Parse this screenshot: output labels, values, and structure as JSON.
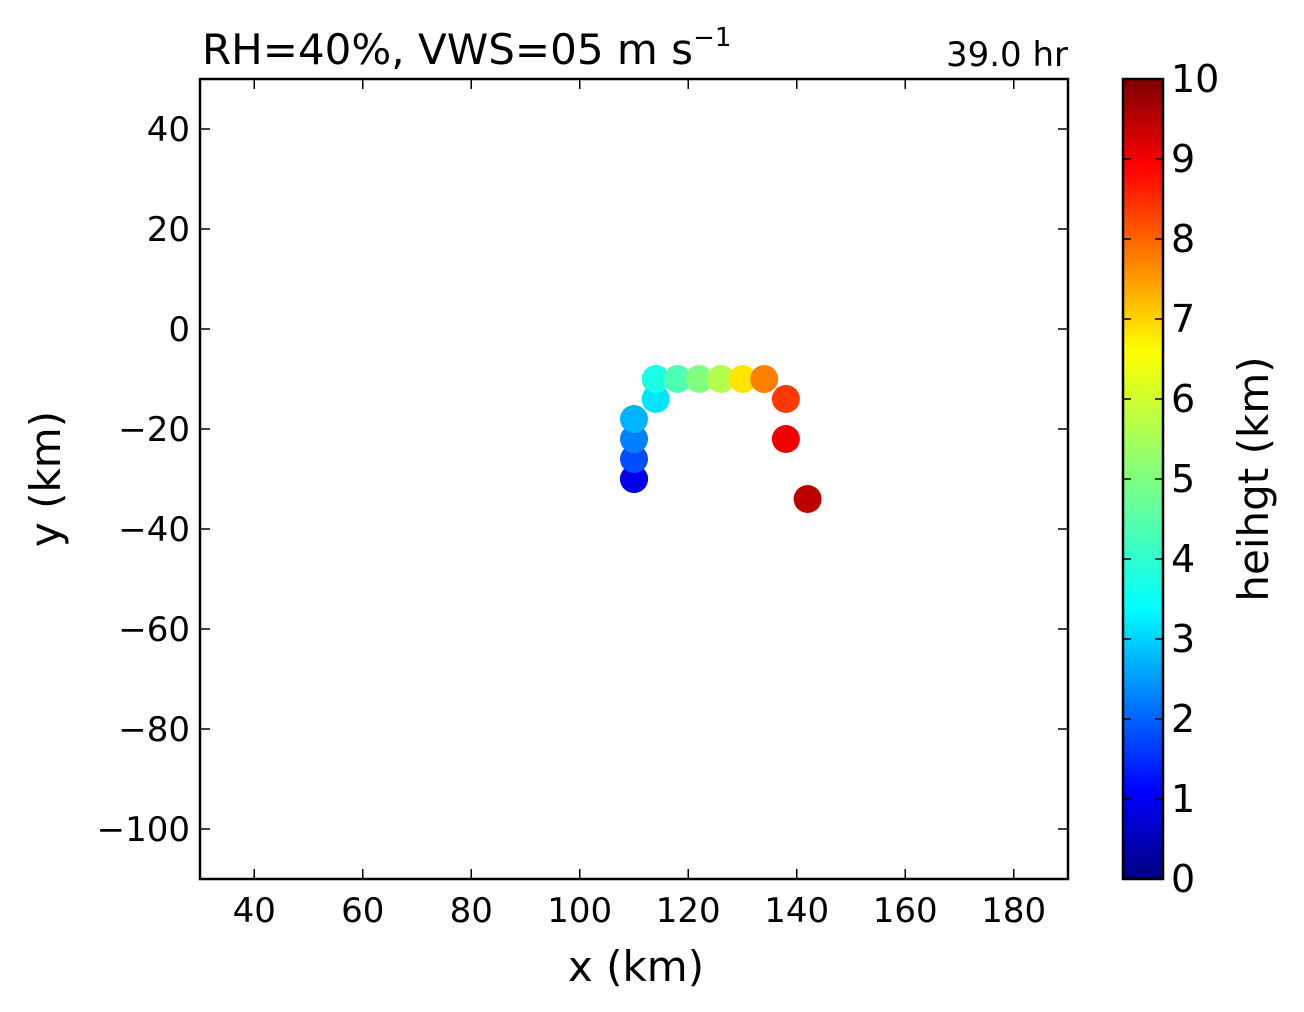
{
  "chart_data": {
    "type": "scatter",
    "title_main": "RH=40%, VWS=05 m s",
    "title_sup": "−1",
    "time_label": "39.0 hr",
    "time_label_color": "#0000ff",
    "xlabel": "x (km)",
    "ylabel": "y (km)",
    "xlim": [
      30,
      190
    ],
    "ylim": [
      -110,
      50
    ],
    "xticks": [
      40,
      60,
      80,
      100,
      120,
      140,
      160,
      180
    ],
    "yticks": [
      -100,
      -80,
      -60,
      -40,
      -20,
      0,
      20,
      40
    ],
    "colorbar": {
      "label": "heihgt (km)",
      "range": [
        0,
        10
      ],
      "ticks": [
        0,
        1,
        2,
        3,
        4,
        5,
        6,
        7,
        8,
        9,
        10
      ],
      "colormap": "jet"
    },
    "grid": false,
    "points": [
      {
        "x": 110,
        "y": -30,
        "height": 0.5
      },
      {
        "x": 110,
        "y": -30,
        "height": 1.0
      },
      {
        "x": 110,
        "y": -26,
        "height": 2.0
      },
      {
        "x": 110,
        "y": -22,
        "height": 2.5
      },
      {
        "x": 110,
        "y": -18,
        "height": 3.0
      },
      {
        "x": 114,
        "y": -14,
        "height": 3.5
      },
      {
        "x": 114,
        "y": -10,
        "height": 4.0
      },
      {
        "x": 118,
        "y": -10,
        "height": 4.5
      },
      {
        "x": 122,
        "y": -10,
        "height": 5.0
      },
      {
        "x": 126,
        "y": -10,
        "height": 5.5
      },
      {
        "x": 130,
        "y": -10,
        "height": 6.5
      },
      {
        "x": 134,
        "y": -10,
        "height": 7.5
      },
      {
        "x": 138,
        "y": -14,
        "height": 8.2
      },
      {
        "x": 138,
        "y": -22,
        "height": 8.9
      },
      {
        "x": 142,
        "y": -34,
        "height": 9.4
      }
    ]
  }
}
